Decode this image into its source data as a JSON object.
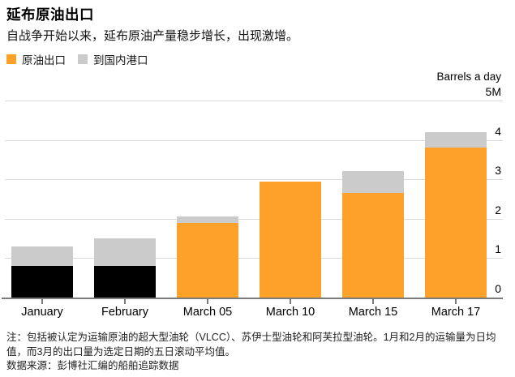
{
  "header": {
    "title": "延布原油出口",
    "subtitle": "自战争开始以来，延布原油产量稳步增长，出现激增。"
  },
  "footer": {
    "note": "注：包括被认定为运输原油的超大型油轮（VLCC）、苏伊士型油轮和阿芙拉型油轮。1月和2月的运输量为日均值，而3月的出口量为选定日期的五日滚动平均值。",
    "source": "数据来源：彭博社汇编的船舶追踪数据"
  },
  "colors": {
    "export_orange": "#FDA12B",
    "export_jan_feb_black": "#000000",
    "domestic_gray": "#CBCBCB",
    "gridline": "#dadada",
    "axis": "#7b7b7b"
  },
  "chart_data": {
    "type": "bar",
    "stacked": true,
    "title": "延布原油出口",
    "unit_label": "Barrels a day",
    "categories": [
      "January",
      "February",
      "March 05",
      "March 10",
      "March 15",
      "March 17"
    ],
    "series": [
      {
        "name": "原油出口",
        "values": [
          0.8,
          0.8,
          1.9,
          2.95,
          2.65,
          3.8
        ],
        "colors": [
          "#000000",
          "#000000",
          "#FDA12B",
          "#FDA12B",
          "#FDA12B",
          "#FDA12B"
        ],
        "legend_color": "#FDA12B"
      },
      {
        "name": "到国内港口",
        "values": [
          0.5,
          0.7,
          0.15,
          0,
          0.55,
          0.4
        ],
        "colors": [
          "#CBCBCB",
          "#CBCBCB",
          "#CBCBCB",
          "#CBCBCB",
          "#CBCBCB",
          "#CBCBCB"
        ],
        "legend_color": "#CBCBCB"
      }
    ],
    "totals": [
      1.3,
      1.5,
      2.05,
      2.95,
      3.2,
      4.2
    ],
    "ylim": [
      0,
      5
    ],
    "y_tick_labels": [
      "0",
      "1",
      "2",
      "3",
      "4",
      "5M"
    ],
    "grid": true,
    "legend_position": "top-left"
  }
}
